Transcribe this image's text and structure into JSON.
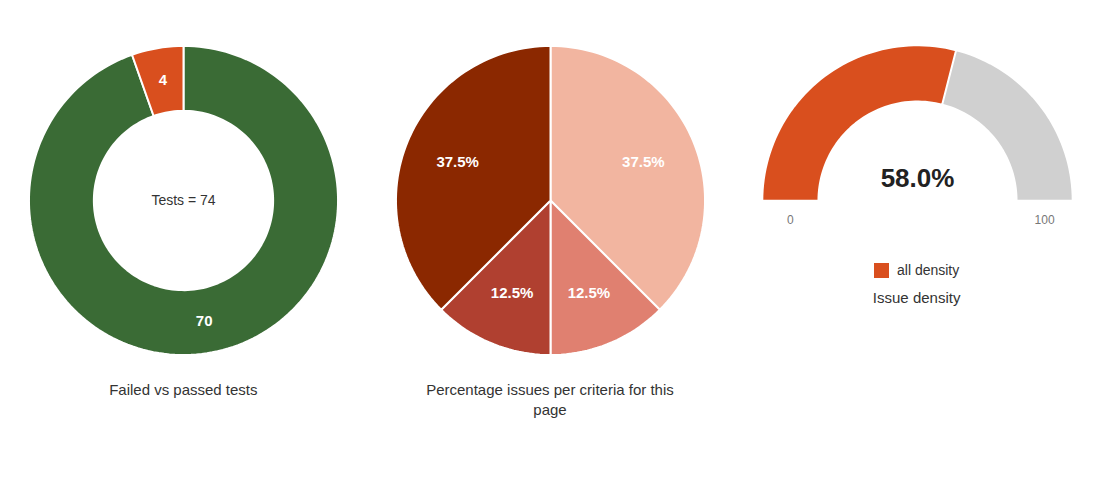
{
  "chart_data": [
    {
      "type": "donut",
      "title": "Failed vs passed tests",
      "values": [
        70,
        4
      ],
      "colors": [
        "#3a6b35",
        "#d94f1e"
      ],
      "data_labels": true,
      "annotations": [
        "Tests = 74"
      ]
    },
    {
      "type": "pie",
      "title": "Percentage issues per criteria for this\npage",
      "values": [
        37.5,
        12.5,
        12.5,
        37.5
      ],
      "colors": [
        "#f2b5a0",
        "#e08070",
        "#b04030",
        "#8b2800"
      ],
      "data_labels": true,
      "value_labels": [
        "37.5%",
        "12.5%",
        "12.5%",
        "37.5%"
      ]
    },
    {
      "type": "gauge",
      "title": "Issue density",
      "series": [
        {
          "name": "all density",
          "color": "#d94f1e",
          "values": [
            58.0
          ],
          "value_labels": [
            "58.0%"
          ]
        }
      ],
      "color": "#d0d0d0",
      "xlim": [
        0,
        100
      ],
      "xticks": [
        0,
        100
      ],
      "legend": "bottom"
    }
  ]
}
